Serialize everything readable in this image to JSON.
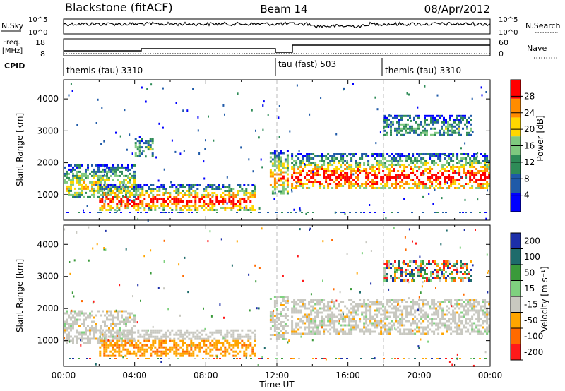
{
  "header": {
    "title": "Blackstone (fitACF)",
    "beam": "Beam 14",
    "date": "08/Apr/2012"
  },
  "noise_panel": {
    "left_label": "N.Sky",
    "left_ticks": [
      "10^5",
      "10^0"
    ],
    "right_label": "N.Search",
    "right_ticks": [
      "10^5",
      "10^0"
    ]
  },
  "freq_panel": {
    "left_label_1": "Freq.",
    "left_label_2": "[MHz]",
    "left_ticks": [
      "18",
      "8"
    ],
    "right_label": "Nave",
    "right_ticks": [
      "60",
      "0"
    ]
  },
  "cpid_panel": {
    "label": "CPID",
    "segments": [
      {
        "label": "themis (tau) 3310",
        "start_hour": 0
      },
      {
        "label": "tau (fast) 503",
        "start_hour": 12
      },
      {
        "label": "themis (tau) 3310",
        "start_hour": 18
      }
    ]
  },
  "chart_data": [
    {
      "type": "heatmap",
      "panel": "power",
      "ylabel": "Slant Range [km]",
      "xlabel": "",
      "ylim": [
        200,
        4600
      ],
      "xlim": [
        0,
        24
      ],
      "yticks": [
        "1000",
        "2000",
        "3000",
        "4000"
      ],
      "colorbar_label": "Power [dB]",
      "colorbar_ticks": [
        "4",
        "8",
        "12",
        "16",
        "20",
        "24",
        "28"
      ],
      "colors": [
        "#0000ff",
        "#1f5aa8",
        "#2e8b57",
        "#7fc97f",
        "#ffd700",
        "#ff8c00",
        "#ff0000"
      ],
      "regions": [
        {
          "t0": 0.0,
          "t1": 4.0,
          "r0": 950,
          "r1": 1950,
          "level": 0.5
        },
        {
          "t0": 2.0,
          "t1": 10.8,
          "r0": 550,
          "r1": 1350,
          "level": 0.8
        },
        {
          "t0": 4.0,
          "t1": 5.0,
          "r0": 2200,
          "r1": 2850,
          "level": 0.3
        },
        {
          "t0": 11.6,
          "t1": 12.6,
          "r0": 1050,
          "r1": 2400,
          "level": 0.65
        },
        {
          "t0": 12.8,
          "t1": 24.0,
          "r0": 1200,
          "r1": 2300,
          "level": 0.85
        },
        {
          "t0": 18.0,
          "t1": 23.0,
          "r0": 2850,
          "r1": 3500,
          "level": 0.25
        }
      ]
    },
    {
      "type": "heatmap",
      "panel": "velocity",
      "ylabel": "Slant Range [km]",
      "xlabel": "Time UT",
      "ylim": [
        200,
        4600
      ],
      "xlim": [
        0,
        24
      ],
      "yticks": [
        "1000",
        "2000",
        "3000",
        "4000"
      ],
      "xticks": [
        "00:00",
        "04:00",
        "08:00",
        "12:00",
        "16:00",
        "20:00",
        "00:00"
      ],
      "colorbar_label": "Velocity [m s⁻¹]",
      "colorbar_ticks": [
        "200",
        "100",
        "50",
        "15",
        "-15",
        "-50",
        "-100",
        "-200"
      ],
      "colors": [
        "#1c2fa8",
        "#1e6b6b",
        "#3a9a3a",
        "#7fd17f",
        "#c8c8c0",
        "#ffa500",
        "#ff6a00",
        "#ff1a1a"
      ],
      "regions": [
        {
          "t0": 0.0,
          "t1": 4.0,
          "r0": 950,
          "r1": 1950,
          "vel": "gray"
        },
        {
          "t0": 2.0,
          "t1": 10.8,
          "r0": 550,
          "r1": 1350,
          "vel": "gray_orange"
        },
        {
          "t0": 11.6,
          "t1": 12.6,
          "r0": 1050,
          "r1": 2400,
          "vel": "gray"
        },
        {
          "t0": 12.8,
          "t1": 24.0,
          "r0": 1200,
          "r1": 2300,
          "vel": "gray"
        },
        {
          "t0": 18.0,
          "t1": 23.0,
          "r0": 2850,
          "r1": 3500,
          "vel": "mixed"
        }
      ]
    }
  ]
}
